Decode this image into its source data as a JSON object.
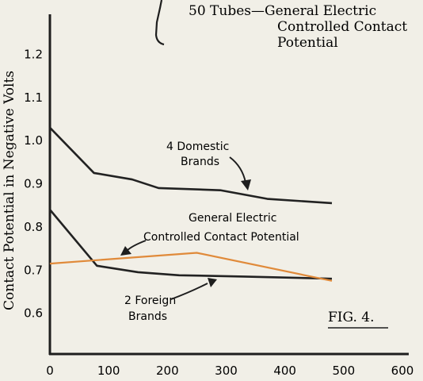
{
  "chart_data": {
    "type": "line",
    "title_lines": [
      "50 Tubes—General Electric",
      "Controlled Contact",
      "Potential"
    ],
    "ylabel": "Contact Potential in Negative Volts",
    "xlabel": "",
    "xlim": [
      0,
      600
    ],
    "ylim": [
      0.5,
      1.3
    ],
    "x_ticks": [
      0,
      100,
      200,
      300,
      400,
      500,
      600
    ],
    "y_ticks": [
      0.6,
      0.7,
      0.8,
      0.9,
      1.0,
      1.1,
      1.2
    ],
    "x_tick_labels": [
      "0",
      "100",
      "200",
      "300",
      "400",
      "500",
      "600"
    ],
    "y_tick_labels": [
      "0.6",
      "0.7",
      "0.8",
      "0.9",
      "1.0",
      "1.1",
      "1.2"
    ],
    "grid": false,
    "series": [
      {
        "color": "#222222",
        "points": [
          [
            0,
            1.03
          ],
          [
            75,
            0.925
          ],
          [
            140,
            0.91
          ],
          [
            185,
            0.89
          ],
          [
            290,
            0.885
          ],
          [
            370,
            0.865
          ],
          [
            480,
            0.855
          ]
        ]
      },
      {
        "color": "#222222",
        "points": [
          [
            0,
            0.84
          ],
          [
            80,
            0.71
          ],
          [
            150,
            0.695
          ],
          [
            220,
            0.688
          ],
          [
            330,
            0.685
          ],
          [
            480,
            0.68
          ]
        ]
      },
      {
        "color": "#e08a3a",
        "points": [
          [
            0,
            0.715
          ],
          [
            250,
            0.74
          ],
          [
            480,
            0.675
          ]
        ]
      }
    ],
    "annotations": [
      {
        "text_lines": [
          "4 Domestic",
          "Brands"
        ]
      },
      {
        "text_lines": [
          "General Electric",
          "Controlled Contact Potential"
        ]
      },
      {
        "text_lines": [
          "2 Foreign",
          "Brands"
        ]
      }
    ],
    "figure_label": "FIG. 4."
  }
}
